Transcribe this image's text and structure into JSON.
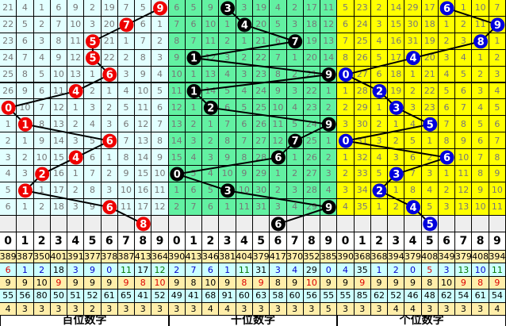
{
  "colors": {
    "hundreds_bg": "#e2ffff",
    "tens_bg": "#62f1a2",
    "units_bg": "#ffff00",
    "blank_bg": "#eeeeee",
    "hundreds_ball": "#ee0000",
    "tens_ball": "#000000",
    "units_ball": "#0000dd",
    "stat_yellow": "#ffeeaa",
    "stat_cyan": "#ccffff",
    "red": "#dd0000",
    "blue": "#0000cc",
    "green": "#007700",
    "black": "#000000"
  },
  "digits": [
    "0",
    "1",
    "2",
    "3",
    "4",
    "5",
    "6",
    "7",
    "8",
    "9"
  ],
  "panels": [
    {
      "label": "百位数字",
      "rows": [
        [
          21,
          4,
          1,
          6,
          9,
          2,
          19,
          7,
          5,
          9
        ],
        [
          22,
          5,
          2,
          7,
          10,
          3,
          20,
          7,
          6,
          1
        ],
        [
          23,
          6,
          3,
          8,
          11,
          5,
          21,
          1,
          7,
          2
        ],
        [
          24,
          7,
          4,
          9,
          12,
          5,
          22,
          2,
          8,
          3
        ],
        [
          25,
          8,
          5,
          10,
          13,
          1,
          6,
          3,
          9,
          4
        ],
        [
          26,
          9,
          6,
          11,
          4,
          2,
          1,
          4,
          10,
          5
        ],
        [
          0,
          10,
          7,
          12,
          1,
          3,
          2,
          5,
          11,
          6
        ],
        [
          1,
          1,
          8,
          13,
          2,
          4,
          3,
          6,
          12,
          7
        ],
        [
          2,
          1,
          9,
          14,
          3,
          5,
          6,
          7,
          13,
          8
        ],
        [
          3,
          2,
          10,
          15,
          4,
          6,
          1,
          8,
          14,
          9
        ],
        [
          4,
          3,
          2,
          16,
          1,
          7,
          2,
          9,
          15,
          10
        ],
        [
          5,
          1,
          1,
          17,
          2,
          8,
          3,
          10,
          16,
          11
        ],
        [
          6,
          1,
          2,
          18,
          3,
          9,
          6,
          11,
          17,
          12
        ]
      ],
      "balls": [
        9,
        7,
        5,
        5,
        6,
        4,
        0,
        1,
        6,
        4,
        2,
        1,
        6
      ],
      "next_ball": 8,
      "stats": [
        {
          "bg": "stat_yellow",
          "values": [
            389,
            387,
            350,
            401,
            391,
            377,
            378,
            387,
            413,
            364
          ],
          "colors": [
            "black",
            "black",
            "black",
            "black",
            "black",
            "black",
            "black",
            "black",
            "black",
            "black"
          ]
        },
        {
          "bg": "stat_cyan",
          "values": [
            6,
            1,
            2,
            18,
            3,
            9,
            0,
            11,
            17,
            12
          ],
          "colors": [
            "red",
            "blue",
            "blue",
            "black",
            "blue",
            "blue",
            "blue",
            "green",
            "black",
            "green"
          ]
        },
        {
          "bg": "stat_yellow",
          "values": [
            9,
            9,
            10,
            9,
            9,
            9,
            9,
            9,
            8,
            10
          ],
          "colors": [
            "black",
            "black",
            "black",
            "red",
            "black",
            "black",
            "black",
            "red",
            "red",
            "red"
          ]
        },
        {
          "bg": "stat_cyan",
          "values": [
            55,
            56,
            80,
            50,
            51,
            52,
            61,
            65,
            41,
            52
          ],
          "colors": [
            "black",
            "black",
            "black",
            "black",
            "black",
            "black",
            "black",
            "black",
            "black",
            "black"
          ]
        },
        {
          "bg": "stat_yellow",
          "values": [
            4,
            3,
            3,
            3,
            3,
            2,
            3,
            3,
            3,
            3
          ],
          "colors": [
            "black",
            "black",
            "black",
            "black",
            "black",
            "black",
            "black",
            "black",
            "black",
            "black"
          ]
        }
      ]
    },
    {
      "label": "十位数字",
      "rows": [
        [
          6,
          5,
          9,
          3,
          3,
          19,
          4,
          2,
          17,
          11
        ],
        [
          7,
          6,
          10,
          1,
          4,
          20,
          5,
          3,
          18,
          12
        ],
        [
          8,
          7,
          11,
          2,
          1,
          21,
          6,
          7,
          19,
          13
        ],
        [
          9,
          1,
          12,
          3,
          2,
          22,
          7,
          1,
          20,
          14
        ],
        [
          10,
          1,
          13,
          4,
          3,
          23,
          8,
          2,
          21,
          9
        ],
        [
          11,
          1,
          14,
          5,
          4,
          24,
          9,
          3,
          22,
          1
        ],
        [
          12,
          1,
          2,
          6,
          5,
          25,
          10,
          4,
          23,
          2
        ],
        [
          13,
          2,
          1,
          7,
          6,
          26,
          11,
          5,
          24,
          9
        ],
        [
          14,
          3,
          2,
          8,
          7,
          27,
          12,
          7,
          25,
          1
        ],
        [
          15,
          4,
          3,
          9,
          8,
          28,
          6,
          1,
          26,
          2
        ],
        [
          0,
          5,
          4,
          10,
          9,
          29,
          1,
          2,
          27,
          3
        ],
        [
          1,
          6,
          5,
          3,
          10,
          30,
          2,
          3,
          28,
          4
        ],
        [
          2,
          7,
          6,
          1,
          11,
          31,
          3,
          4,
          29,
          9
        ]
      ],
      "balls": [
        3,
        4,
        7,
        1,
        9,
        1,
        2,
        9,
        7,
        6,
        0,
        3,
        9
      ],
      "next_ball": 6,
      "stats": [
        {
          "bg": "stat_yellow",
          "values": [
            390,
            413,
            346,
            381,
            404,
            379,
            417,
            370,
            352,
            385
          ],
          "colors": [
            "black",
            "black",
            "black",
            "black",
            "black",
            "black",
            "black",
            "black",
            "black",
            "black"
          ]
        },
        {
          "bg": "stat_cyan",
          "values": [
            2,
            7,
            6,
            1,
            11,
            31,
            3,
            4,
            29,
            0
          ],
          "colors": [
            "blue",
            "blue",
            "blue",
            "blue",
            "green",
            "black",
            "blue",
            "blue",
            "black",
            "blue"
          ]
        },
        {
          "bg": "stat_yellow",
          "values": [
            9,
            8,
            10,
            9,
            8,
            9,
            8,
            9,
            10,
            9
          ],
          "colors": [
            "black",
            "black",
            "black",
            "black",
            "red",
            "red",
            "black",
            "black",
            "red",
            "black"
          ]
        },
        {
          "bg": "stat_cyan",
          "values": [
            49,
            41,
            68,
            91,
            60,
            63,
            58,
            60,
            56,
            55
          ],
          "colors": [
            "black",
            "black",
            "black",
            "black",
            "black",
            "black",
            "black",
            "black",
            "black",
            "black"
          ]
        },
        {
          "bg": "stat_yellow",
          "values": [
            3,
            3,
            4,
            4,
            3,
            3,
            3,
            3,
            3,
            5
          ],
          "colors": [
            "black",
            "black",
            "black",
            "black",
            "black",
            "black",
            "black",
            "black",
            "black",
            "black"
          ]
        }
      ]
    },
    {
      "label": "个位数字",
      "rows": [
        [
          5,
          23,
          2,
          14,
          29,
          17,
          6,
          1,
          10,
          7
        ],
        [
          6,
          24,
          3,
          15,
          30,
          18,
          1,
          2,
          11,
          9
        ],
        [
          7,
          25,
          4,
          16,
          31,
          19,
          2,
          3,
          8,
          1
        ],
        [
          8,
          26,
          5,
          17,
          4,
          20,
          3,
          4,
          1,
          2
        ],
        [
          0,
          27,
          6,
          18,
          1,
          21,
          4,
          5,
          2,
          3
        ],
        [
          1,
          28,
          2,
          19,
          2,
          22,
          5,
          6,
          3,
          4
        ],
        [
          2,
          29,
          1,
          3,
          3,
          23,
          6,
          7,
          4,
          5
        ],
        [
          3,
          30,
          2,
          1,
          4,
          5,
          7,
          8,
          5,
          6
        ],
        [
          0,
          31,
          3,
          2,
          5,
          1,
          8,
          9,
          6,
          7
        ],
        [
          1,
          32,
          4,
          3,
          6,
          2,
          6,
          10,
          7,
          8
        ],
        [
          2,
          33,
          5,
          3,
          7,
          3,
          1,
          11,
          8,
          9
        ],
        [
          3,
          34,
          2,
          1,
          8,
          4,
          2,
          12,
          9,
          10
        ],
        [
          4,
          35,
          1,
          2,
          4,
          5,
          3,
          13,
          10,
          11
        ]
      ],
      "balls": [
        6,
        9,
        8,
        4,
        0,
        2,
        3,
        5,
        0,
        6,
        3,
        2,
        4
      ],
      "next_ball": 5,
      "stats": [
        {
          "bg": "stat_yellow",
          "values": [
            390,
            368,
            368,
            394,
            379,
            408,
            349,
            379,
            408,
            394
          ],
          "colors": [
            "black",
            "black",
            "black",
            "black",
            "black",
            "black",
            "black",
            "black",
            "black",
            "black"
          ]
        },
        {
          "bg": "stat_cyan",
          "values": [
            4,
            35,
            1,
            2,
            0,
            5,
            3,
            13,
            10,
            11
          ],
          "colors": [
            "blue",
            "black",
            "blue",
            "blue",
            "blue",
            "red",
            "blue",
            "green",
            "blue",
            "green"
          ]
        },
        {
          "bg": "stat_yellow",
          "values": [
            9,
            9,
            9,
            9,
            9,
            8,
            10,
            9,
            8,
            9
          ],
          "colors": [
            "black",
            "red",
            "black",
            "black",
            "black",
            "black",
            "black",
            "red",
            "red",
            "red"
          ]
        },
        {
          "bg": "stat_cyan",
          "values": [
            55,
            85,
            62,
            52,
            46,
            48,
            62,
            54,
            61,
            54
          ],
          "colors": [
            "black",
            "black",
            "black",
            "black",
            "black",
            "black",
            "black",
            "black",
            "black",
            "black"
          ]
        },
        {
          "bg": "stat_yellow",
          "values": [
            3,
            3,
            3,
            4,
            4,
            3,
            3,
            3,
            3,
            4
          ],
          "colors": [
            "black",
            "black",
            "black",
            "black",
            "black",
            "black",
            "black",
            "black",
            "black",
            "black"
          ]
        }
      ]
    }
  ]
}
